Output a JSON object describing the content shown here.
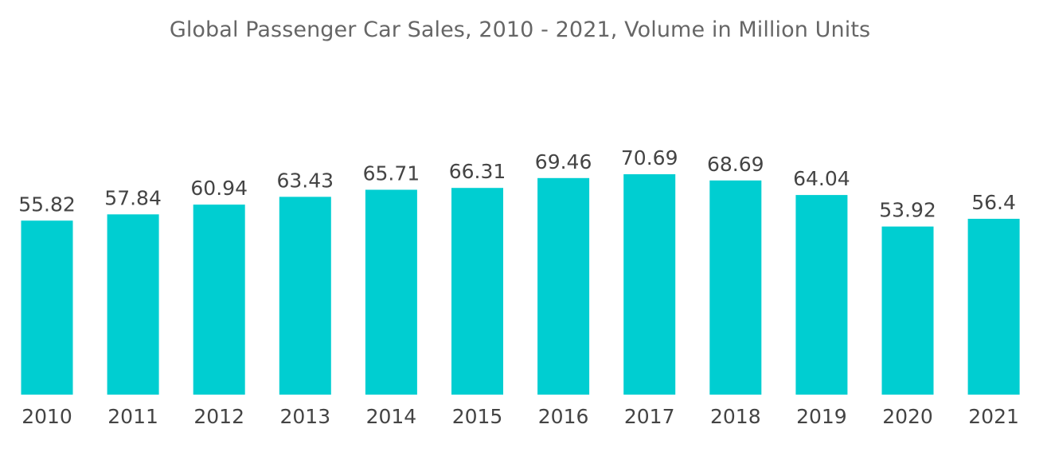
{
  "chart_data": {
    "type": "bar",
    "title": "Global Passenger Car Sales, 2010 - 2021, Volume in Million Units",
    "categories": [
      "2010",
      "2011",
      "2012",
      "2013",
      "2014",
      "2015",
      "2016",
      "2017",
      "2018",
      "2019",
      "2020",
      "2021"
    ],
    "values": [
      55.82,
      57.84,
      60.94,
      63.43,
      65.71,
      66.31,
      69.46,
      70.69,
      68.69,
      64.04,
      53.92,
      56.4
    ],
    "value_labels": [
      "55.82",
      "57.84",
      "60.94",
      "63.43",
      "65.71",
      "66.31",
      "69.46",
      "70.69",
      "68.69",
      "64.04",
      "53.92",
      "56.4"
    ],
    "xlabel": "",
    "ylabel": "",
    "ylim": [
      0,
      70.69
    ],
    "grid": false,
    "legend": "none",
    "bar_color": "#00CED1"
  }
}
